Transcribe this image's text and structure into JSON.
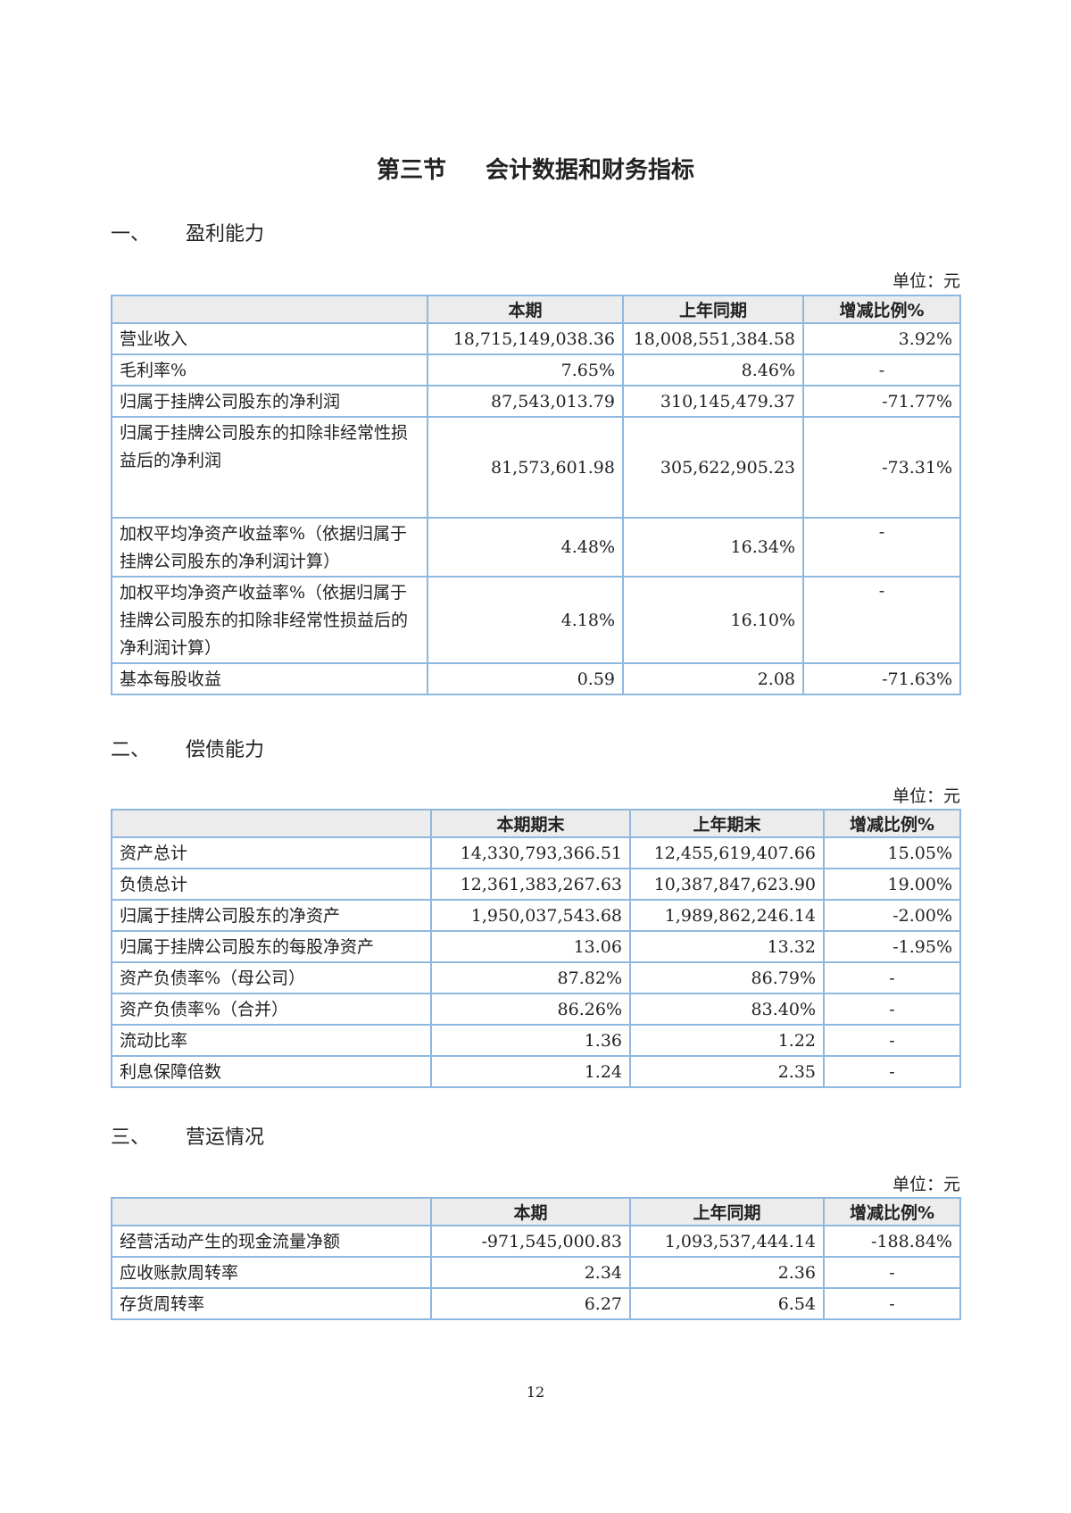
{
  "title": {
    "section": "第三节",
    "name": "会计数据和财务指标"
  },
  "unit_label": "单位：元",
  "sections": [
    {
      "number": "一、",
      "heading": "盈利能力",
      "columns": [
        "",
        "本期",
        "上年同期",
        "增减比例%"
      ],
      "rows": [
        [
          "营业收入",
          "18,715,149,038.36",
          "18,008,551,384.58",
          "3.92%"
        ],
        [
          "毛利率%",
          "7.65%",
          "8.46%",
          "-"
        ],
        [
          "归属于挂牌公司股东的净利润",
          "87,543,013.79",
          "310,145,479.37",
          "-71.77%"
        ],
        [
          "归属于挂牌公司股东的扣除非经常性损益后的净利润",
          "81,573,601.98",
          "305,622,905.23",
          "-73.31%"
        ],
        [
          "加权平均净资产收益率%（依据归属于挂牌公司股东的净利润计算）",
          "4.48%",
          "16.34%",
          "-"
        ],
        [
          "加权平均净资产收益率%（依据归属于挂牌公司股东的扣除非经常性损益后的净利润计算）",
          "4.18%",
          "16.10%",
          "-"
        ],
        [
          "基本每股收益",
          "0.59",
          "2.08",
          "-71.63%"
        ]
      ]
    },
    {
      "number": "二、",
      "heading": "偿债能力",
      "columns": [
        "",
        "本期期末",
        "上年期末",
        "增减比例%"
      ],
      "rows": [
        [
          "资产总计",
          "14,330,793,366.51",
          "12,455,619,407.66",
          "15.05%"
        ],
        [
          "负债总计",
          "12,361,383,267.63",
          "10,387,847,623.90",
          "19.00%"
        ],
        [
          "归属于挂牌公司股东的净资产",
          "1,950,037,543.68",
          "1,989,862,246.14",
          "-2.00%"
        ],
        [
          "归属于挂牌公司股东的每股净资产",
          "13.06",
          "13.32",
          "-1.95%"
        ],
        [
          "资产负债率%（母公司）",
          "87.82%",
          "86.79%",
          "-"
        ],
        [
          "资产负债率%（合并）",
          "86.26%",
          "83.40%",
          "-"
        ],
        [
          "流动比率",
          "1.36",
          "1.22",
          "-"
        ],
        [
          "利息保障倍数",
          "1.24",
          "2.35",
          "-"
        ]
      ]
    },
    {
      "number": "三、",
      "heading": "营运情况",
      "columns": [
        "",
        "本期",
        "上年同期",
        "增减比例%"
      ],
      "rows": [
        [
          "经营活动产生的现金流量净额",
          "-971,545,000.83",
          "1,093,537,444.14",
          "-188.84%"
        ],
        [
          "应收账款周转率",
          "2.34",
          "2.36",
          "-"
        ],
        [
          "存货周转率",
          "6.27",
          "6.54",
          "-"
        ]
      ]
    }
  ],
  "page_number": "12"
}
